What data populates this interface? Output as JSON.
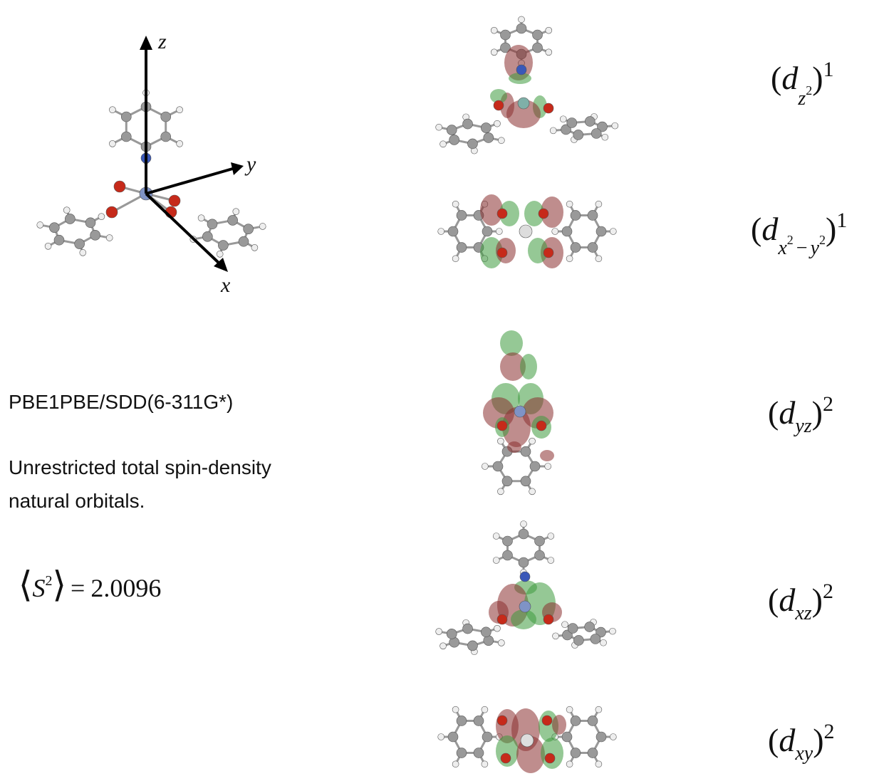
{
  "axes": {
    "z": "z",
    "y": "y",
    "x": "x"
  },
  "method": "PBE1PBE/SDD(6-311G*)",
  "description": [
    "Unrestricted total spin-density",
    "natural orbitals."
  ],
  "spin": {
    "open": "⟨",
    "symbol": "S",
    "exponent": "2",
    "close": "⟩",
    "equals": "=",
    "value": 2.0096
  },
  "orbitals": [
    {
      "open": "(",
      "symbol": "d",
      "subscript": "z",
      "subscript_exponent": "2",
      "close": ")",
      "occupation": 1
    },
    {
      "open": "(",
      "symbol": "d",
      "subscript": "x",
      "subscript_exponent": "2",
      "minus": "−",
      "subscript_2": "y",
      "subscript_2_exponent": "2",
      "close": ")",
      "occupation": 1
    },
    {
      "open": "(",
      "symbol": "d",
      "subscript": "yz",
      "close": ")",
      "occupation": 2
    },
    {
      "open": "(",
      "symbol": "d",
      "subscript": "xz",
      "close": ")",
      "occupation": 2
    },
    {
      "open": "(",
      "symbol": "d",
      "subscript": "xy",
      "close": ")",
      "occupation": 2
    }
  ]
}
